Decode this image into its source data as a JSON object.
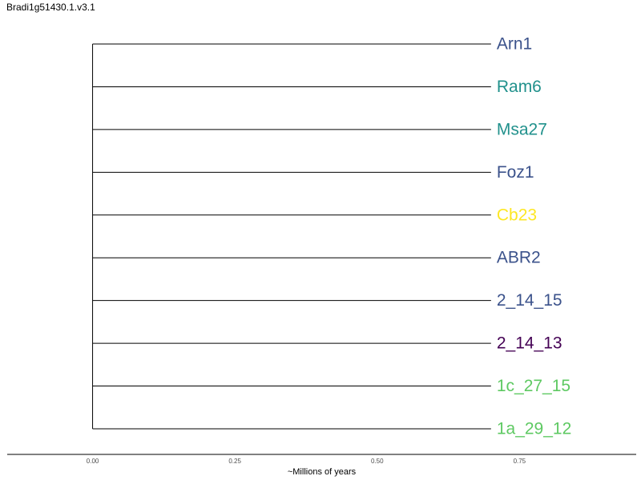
{
  "chart_data": {
    "type": "dendrogram",
    "title": "Bradi1g51430.1.v3.1",
    "xlabel": "~Millions of years",
    "ylabel": "",
    "xlim": [
      -0.15,
      0.955
    ],
    "x_ticks": [
      {
        "value": 0.0,
        "label": "0.00"
      },
      {
        "value": 0.25,
        "label": "0.25"
      },
      {
        "value": 0.5,
        "label": "0.50"
      },
      {
        "value": 0.75,
        "label": "0.75"
      }
    ],
    "root_x": 0.0,
    "grid": false,
    "tips": [
      {
        "name": "Arn1",
        "branch_end": 0.7,
        "color": "#3b528b"
      },
      {
        "name": "Ram6",
        "branch_end": 0.7,
        "color": "#21918c"
      },
      {
        "name": "Msa27",
        "branch_end": 0.7,
        "color": "#21918c"
      },
      {
        "name": "Foz1",
        "branch_end": 0.7,
        "color": "#3b528b"
      },
      {
        "name": "Cb23",
        "branch_end": 0.7,
        "color": "#fde725"
      },
      {
        "name": "ABR2",
        "branch_end": 0.7,
        "color": "#3b528b"
      },
      {
        "name": "2_14_15",
        "branch_end": 0.7,
        "color": "#3b528b"
      },
      {
        "name": "2_14_13",
        "branch_end": 0.7,
        "color": "#440154"
      },
      {
        "name": "1c_27_15",
        "branch_end": 0.7,
        "color": "#5ec962"
      },
      {
        "name": "1a_29_12",
        "branch_end": 0.7,
        "color": "#5ec962"
      }
    ]
  }
}
